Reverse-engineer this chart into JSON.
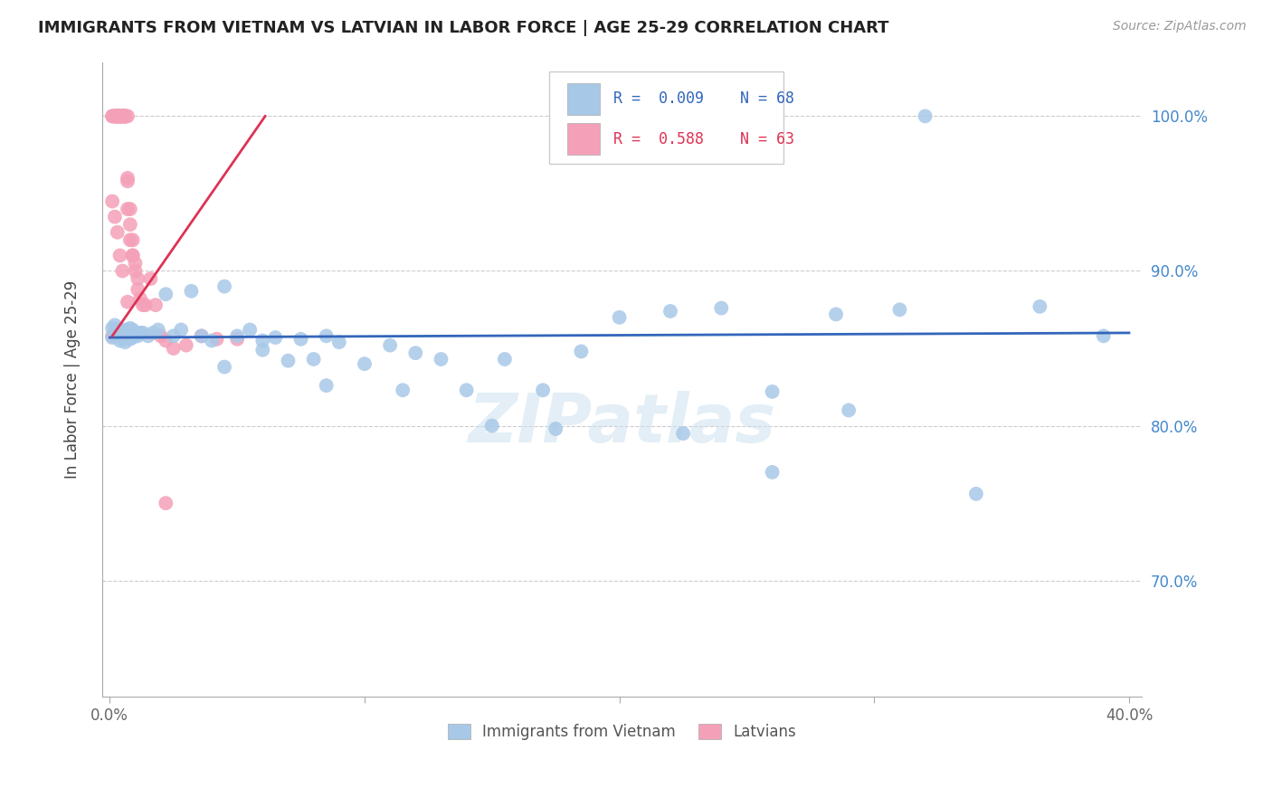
{
  "title": "IMMIGRANTS FROM VIETNAM VS LATVIAN IN LABOR FORCE | AGE 25-29 CORRELATION CHART",
  "source": "Source: ZipAtlas.com",
  "ylabel": "In Labor Force | Age 25-29",
  "watermark": "ZIPatlas",
  "blue_color": "#a8c8e8",
  "pink_color": "#f4a0b8",
  "blue_line_color": "#3366bb",
  "pink_line_color": "#dd3355",
  "legend_blue_text_color": "#3366bb",
  "legend_pink_text_color": "#dd3355",
  "background_color": "#ffffff",
  "grid_color": "#cccccc",
  "right_axis_color": "#4488cc",
  "title_color": "#222222",
  "xmin": -0.003,
  "xmax": 0.405,
  "ymin": 0.625,
  "ymax": 1.035,
  "yticks": [
    0.7,
    0.8,
    0.9,
    1.0
  ],
  "ytick_labels": [
    "70.0%",
    "80.0%",
    "90.0%",
    "100.0%"
  ],
  "xticks": [
    0.0,
    0.1,
    0.2,
    0.3,
    0.4
  ],
  "blue_x": [
    0.001,
    0.001,
    0.002,
    0.002,
    0.003,
    0.003,
    0.004,
    0.004,
    0.005,
    0.005,
    0.006,
    0.006,
    0.007,
    0.007,
    0.008,
    0.008,
    0.009,
    0.009,
    0.01,
    0.011,
    0.012,
    0.013,
    0.015,
    0.017,
    0.019,
    0.022,
    0.025,
    0.028,
    0.032,
    0.036,
    0.04,
    0.045,
    0.05,
    0.055,
    0.06,
    0.065,
    0.07,
    0.075,
    0.08,
    0.085,
    0.09,
    0.1,
    0.11,
    0.12,
    0.13,
    0.14,
    0.155,
    0.17,
    0.185,
    0.2,
    0.22,
    0.24,
    0.26,
    0.285,
    0.31,
    0.34,
    0.365,
    0.39,
    0.045,
    0.06,
    0.085,
    0.115,
    0.15,
    0.175,
    0.225,
    0.26,
    0.29,
    0.32
  ],
  "blue_y": [
    0.857,
    0.863,
    0.86,
    0.865,
    0.858,
    0.862,
    0.855,
    0.861,
    0.857,
    0.862,
    0.854,
    0.859,
    0.857,
    0.862,
    0.856,
    0.863,
    0.857,
    0.862,
    0.86,
    0.858,
    0.86,
    0.86,
    0.858,
    0.86,
    0.862,
    0.885,
    0.858,
    0.862,
    0.887,
    0.858,
    0.855,
    0.89,
    0.858,
    0.862,
    0.855,
    0.857,
    0.842,
    0.856,
    0.843,
    0.858,
    0.854,
    0.84,
    0.852,
    0.847,
    0.843,
    0.823,
    0.843,
    0.823,
    0.848,
    0.87,
    0.874,
    0.876,
    0.822,
    0.872,
    0.875,
    0.756,
    0.877,
    0.858,
    0.838,
    0.849,
    0.826,
    0.823,
    0.8,
    0.798,
    0.795,
    0.77,
    0.81,
    1.0
  ],
  "pink_x": [
    0.001,
    0.001,
    0.001,
    0.002,
    0.002,
    0.002,
    0.002,
    0.003,
    0.003,
    0.003,
    0.003,
    0.003,
    0.003,
    0.003,
    0.004,
    0.004,
    0.004,
    0.004,
    0.004,
    0.005,
    0.005,
    0.005,
    0.005,
    0.005,
    0.006,
    0.006,
    0.006,
    0.006,
    0.006,
    0.006,
    0.007,
    0.007,
    0.007,
    0.007,
    0.008,
    0.008,
    0.008,
    0.009,
    0.009,
    0.009,
    0.01,
    0.01,
    0.011,
    0.011,
    0.012,
    0.013,
    0.014,
    0.016,
    0.018,
    0.02,
    0.022,
    0.025,
    0.03,
    0.036,
    0.042,
    0.05,
    0.001,
    0.002,
    0.003,
    0.004,
    0.005,
    0.007,
    0.022
  ],
  "pink_y": [
    1.0,
    1.0,
    0.858,
    1.0,
    1.0,
    1.0,
    1.0,
    1.0,
    1.0,
    1.0,
    1.0,
    1.0,
    1.0,
    1.0,
    1.0,
    1.0,
    1.0,
    1.0,
    1.0,
    1.0,
    1.0,
    1.0,
    1.0,
    1.0,
    1.0,
    1.0,
    1.0,
    1.0,
    1.0,
    1.0,
    1.0,
    0.958,
    0.96,
    0.94,
    0.94,
    0.93,
    0.92,
    0.92,
    0.91,
    0.91,
    0.9,
    0.905,
    0.895,
    0.888,
    0.882,
    0.878,
    0.878,
    0.895,
    0.878,
    0.858,
    0.855,
    0.85,
    0.852,
    0.858,
    0.856,
    0.856,
    0.945,
    0.935,
    0.925,
    0.91,
    0.9,
    0.88,
    0.75
  ],
  "blue_line_x": [
    0.0,
    0.4
  ],
  "blue_line_y": [
    0.857,
    0.86
  ],
  "pink_line_x": [
    0.001,
    0.061
  ],
  "pink_line_y": [
    0.858,
    1.0
  ]
}
